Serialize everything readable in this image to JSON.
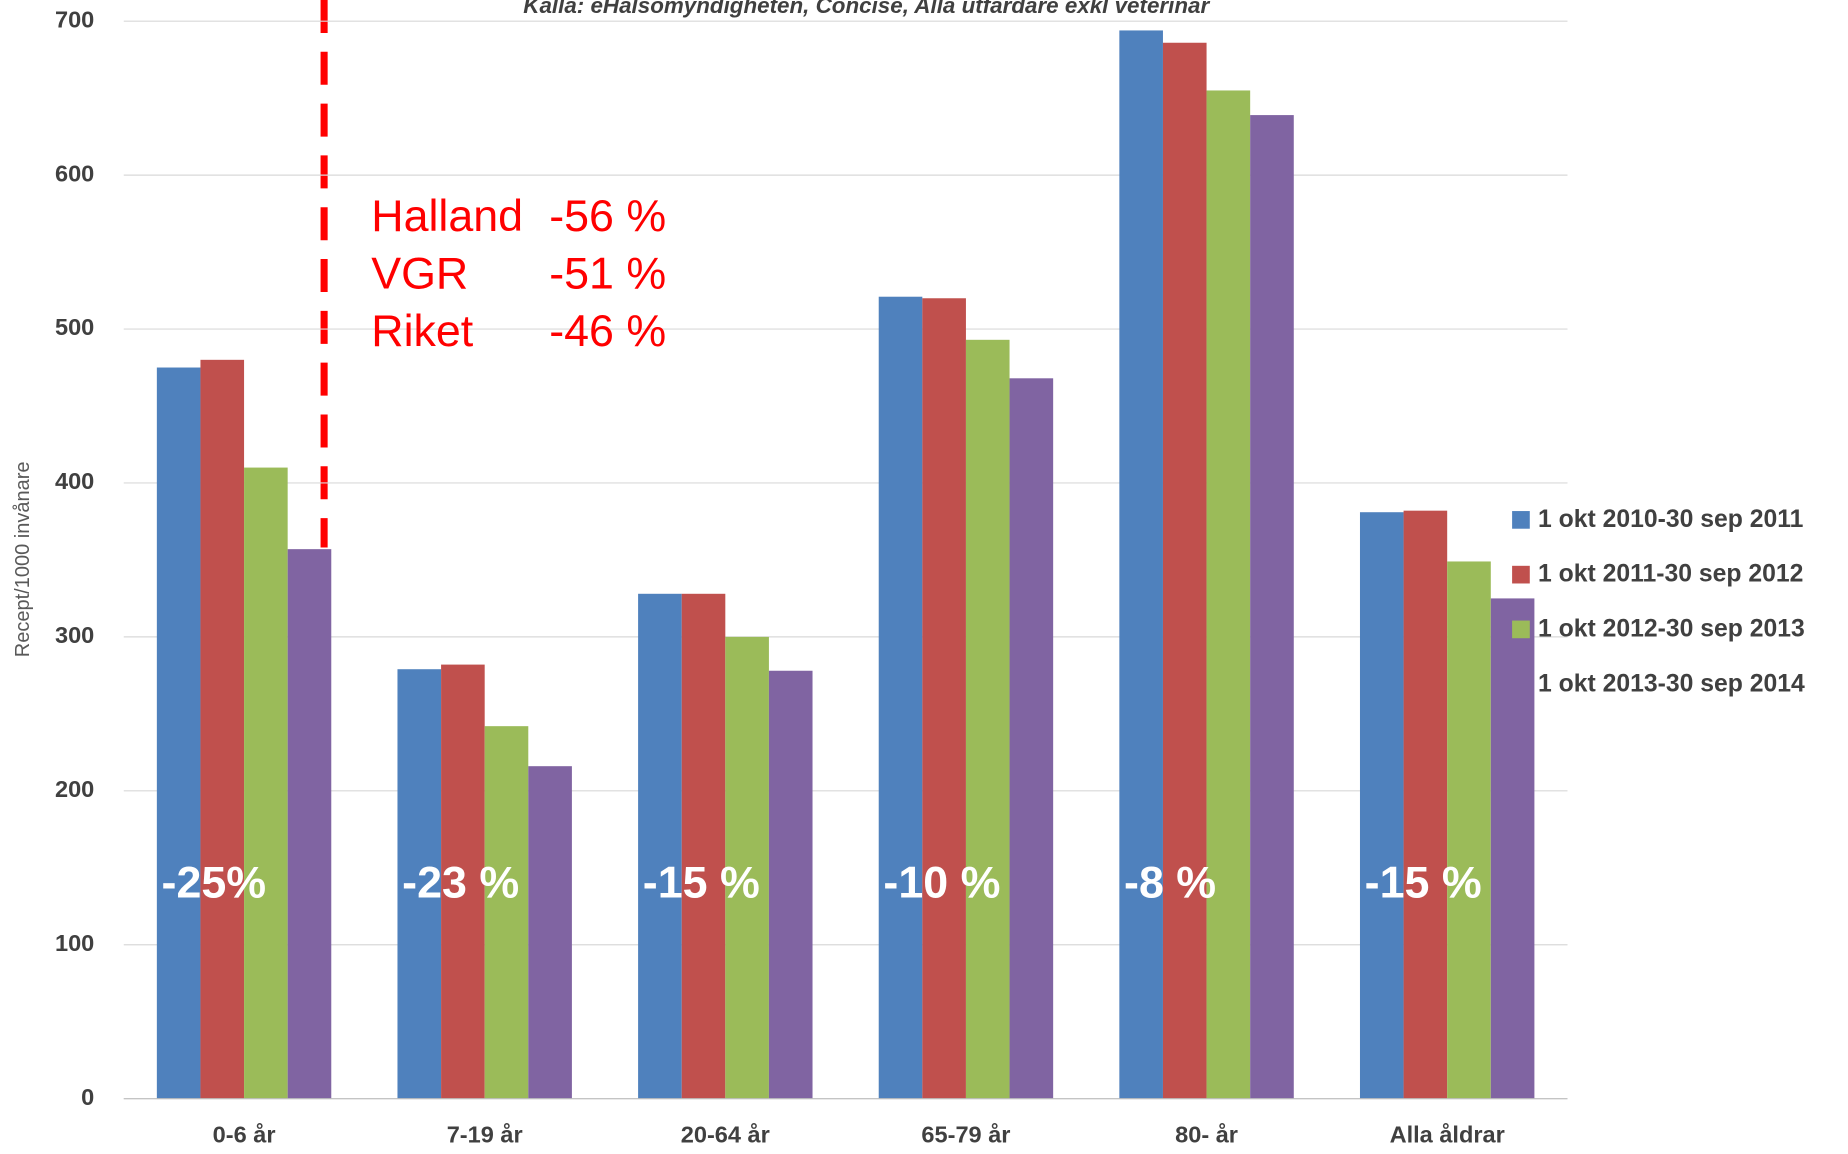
{
  "chart_data": {
    "type": "bar",
    "subtitle": "Källa: eHälsomyndigheten, Concise, Alla utfärdare exkl veterinär",
    "y_label": "Recept/1000 invånare",
    "categories": [
      "0-6 år",
      "7-19 år",
      "20-64 år",
      "65-79 år",
      "80- år",
      "Alla åldrar"
    ],
    "series": [
      {
        "name": "1 okt 2010-30 sep 2011",
        "color": "#4f81bd",
        "values": [
          475,
          279,
          328,
          521,
          694,
          381
        ]
      },
      {
        "name": "1 okt 2011-30 sep 2012",
        "color": "#c0504d",
        "values": [
          480,
          282,
          328,
          520,
          686,
          382
        ]
      },
      {
        "name": "1 okt 2012-30 sep 2013",
        "color": "#9bbb59",
        "values": [
          410,
          242,
          300,
          493,
          655,
          349
        ]
      },
      {
        "name": "1 okt 2013-30 sep 2014",
        "color": "#8064a2",
        "values": [
          357,
          216,
          278,
          468,
          639,
          325
        ]
      }
    ],
    "change_labels": [
      "-25%",
      "-23 %",
      "-15 %",
      "-10 %",
      "-8 %",
      "-15 %"
    ],
    "notes": [
      {
        "region": "Halland",
        "change": "-56 %"
      },
      {
        "region": "VGR",
        "change": "-51 %"
      },
      {
        "region": "Riket",
        "change": "-46 %"
      }
    ],
    "ylim": [
      0,
      700
    ],
    "yticks": [
      0,
      100,
      200,
      300,
      400,
      500,
      600,
      700
    ],
    "grid": true,
    "legend": "right"
  }
}
